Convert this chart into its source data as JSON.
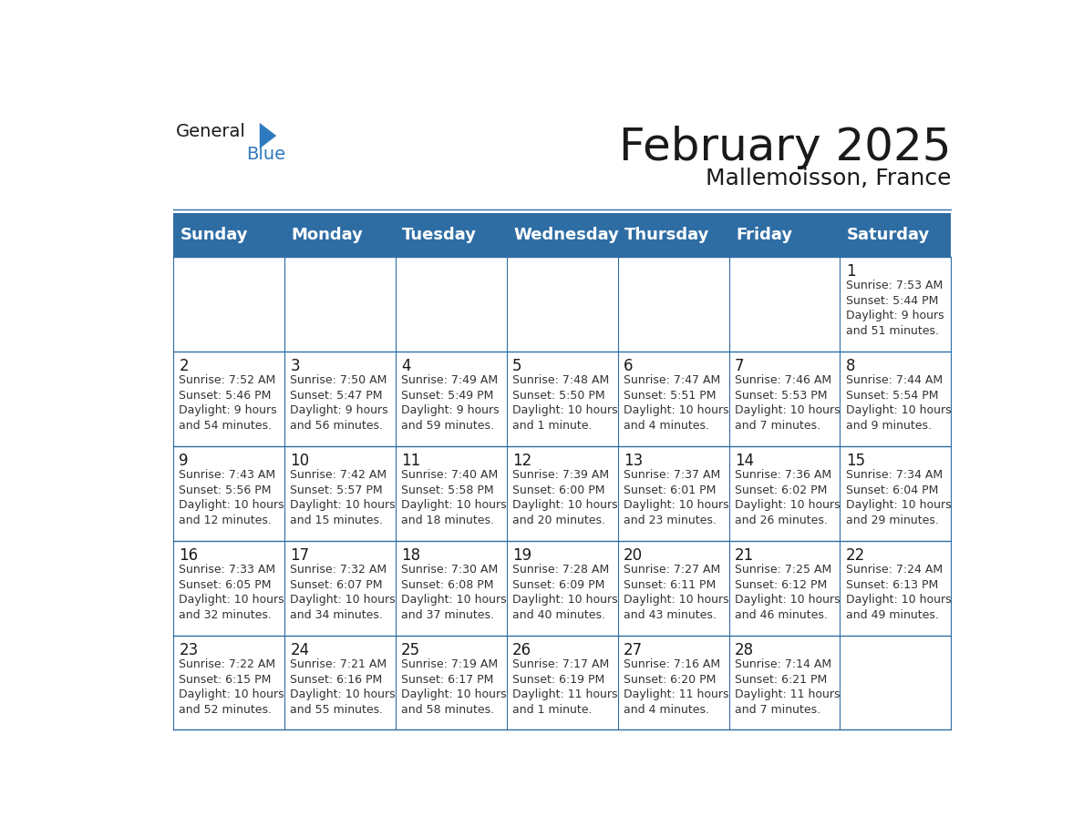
{
  "title": "February 2025",
  "subtitle": "Mallemoisson, France",
  "header_bg": "#2E6DA4",
  "header_text_color": "#FFFFFF",
  "border_color": "#2E6DA4",
  "days_of_week": [
    "Sunday",
    "Monday",
    "Tuesday",
    "Wednesday",
    "Thursday",
    "Friday",
    "Saturday"
  ],
  "title_fontsize": 36,
  "subtitle_fontsize": 18,
  "header_fontsize": 13,
  "day_num_fontsize": 12,
  "info_fontsize": 9,
  "logo_general_color": "#1a1a1a",
  "logo_blue_color": "#2E7ABF",
  "calendar_data": {
    "1": {
      "col": 6,
      "row": 0,
      "sunrise": "7:53 AM",
      "sunset": "5:44 PM",
      "daylight": "9 hours\nand 51 minutes."
    },
    "2": {
      "col": 0,
      "row": 1,
      "sunrise": "7:52 AM",
      "sunset": "5:46 PM",
      "daylight": "9 hours\nand 54 minutes."
    },
    "3": {
      "col": 1,
      "row": 1,
      "sunrise": "7:50 AM",
      "sunset": "5:47 PM",
      "daylight": "9 hours\nand 56 minutes."
    },
    "4": {
      "col": 2,
      "row": 1,
      "sunrise": "7:49 AM",
      "sunset": "5:49 PM",
      "daylight": "9 hours\nand 59 minutes."
    },
    "5": {
      "col": 3,
      "row": 1,
      "sunrise": "7:48 AM",
      "sunset": "5:50 PM",
      "daylight": "10 hours\nand 1 minute."
    },
    "6": {
      "col": 4,
      "row": 1,
      "sunrise": "7:47 AM",
      "sunset": "5:51 PM",
      "daylight": "10 hours\nand 4 minutes."
    },
    "7": {
      "col": 5,
      "row": 1,
      "sunrise": "7:46 AM",
      "sunset": "5:53 PM",
      "daylight": "10 hours\nand 7 minutes."
    },
    "8": {
      "col": 6,
      "row": 1,
      "sunrise": "7:44 AM",
      "sunset": "5:54 PM",
      "daylight": "10 hours\nand 9 minutes."
    },
    "9": {
      "col": 0,
      "row": 2,
      "sunrise": "7:43 AM",
      "sunset": "5:56 PM",
      "daylight": "10 hours\nand 12 minutes."
    },
    "10": {
      "col": 1,
      "row": 2,
      "sunrise": "7:42 AM",
      "sunset": "5:57 PM",
      "daylight": "10 hours\nand 15 minutes."
    },
    "11": {
      "col": 2,
      "row": 2,
      "sunrise": "7:40 AM",
      "sunset": "5:58 PM",
      "daylight": "10 hours\nand 18 minutes."
    },
    "12": {
      "col": 3,
      "row": 2,
      "sunrise": "7:39 AM",
      "sunset": "6:00 PM",
      "daylight": "10 hours\nand 20 minutes."
    },
    "13": {
      "col": 4,
      "row": 2,
      "sunrise": "7:37 AM",
      "sunset": "6:01 PM",
      "daylight": "10 hours\nand 23 minutes."
    },
    "14": {
      "col": 5,
      "row": 2,
      "sunrise": "7:36 AM",
      "sunset": "6:02 PM",
      "daylight": "10 hours\nand 26 minutes."
    },
    "15": {
      "col": 6,
      "row": 2,
      "sunrise": "7:34 AM",
      "sunset": "6:04 PM",
      "daylight": "10 hours\nand 29 minutes."
    },
    "16": {
      "col": 0,
      "row": 3,
      "sunrise": "7:33 AM",
      "sunset": "6:05 PM",
      "daylight": "10 hours\nand 32 minutes."
    },
    "17": {
      "col": 1,
      "row": 3,
      "sunrise": "7:32 AM",
      "sunset": "6:07 PM",
      "daylight": "10 hours\nand 34 minutes."
    },
    "18": {
      "col": 2,
      "row": 3,
      "sunrise": "7:30 AM",
      "sunset": "6:08 PM",
      "daylight": "10 hours\nand 37 minutes."
    },
    "19": {
      "col": 3,
      "row": 3,
      "sunrise": "7:28 AM",
      "sunset": "6:09 PM",
      "daylight": "10 hours\nand 40 minutes."
    },
    "20": {
      "col": 4,
      "row": 3,
      "sunrise": "7:27 AM",
      "sunset": "6:11 PM",
      "daylight": "10 hours\nand 43 minutes."
    },
    "21": {
      "col": 5,
      "row": 3,
      "sunrise": "7:25 AM",
      "sunset": "6:12 PM",
      "daylight": "10 hours\nand 46 minutes."
    },
    "22": {
      "col": 6,
      "row": 3,
      "sunrise": "7:24 AM",
      "sunset": "6:13 PM",
      "daylight": "10 hours\nand 49 minutes."
    },
    "23": {
      "col": 0,
      "row": 4,
      "sunrise": "7:22 AM",
      "sunset": "6:15 PM",
      "daylight": "10 hours\nand 52 minutes."
    },
    "24": {
      "col": 1,
      "row": 4,
      "sunrise": "7:21 AM",
      "sunset": "6:16 PM",
      "daylight": "10 hours\nand 55 minutes."
    },
    "25": {
      "col": 2,
      "row": 4,
      "sunrise": "7:19 AM",
      "sunset": "6:17 PM",
      "daylight": "10 hours\nand 58 minutes."
    },
    "26": {
      "col": 3,
      "row": 4,
      "sunrise": "7:17 AM",
      "sunset": "6:19 PM",
      "daylight": "11 hours\nand 1 minute."
    },
    "27": {
      "col": 4,
      "row": 4,
      "sunrise": "7:16 AM",
      "sunset": "6:20 PM",
      "daylight": "11 hours\nand 4 minutes."
    },
    "28": {
      "col": 5,
      "row": 4,
      "sunrise": "7:14 AM",
      "sunset": "6:21 PM",
      "daylight": "11 hours\nand 7 minutes."
    }
  }
}
